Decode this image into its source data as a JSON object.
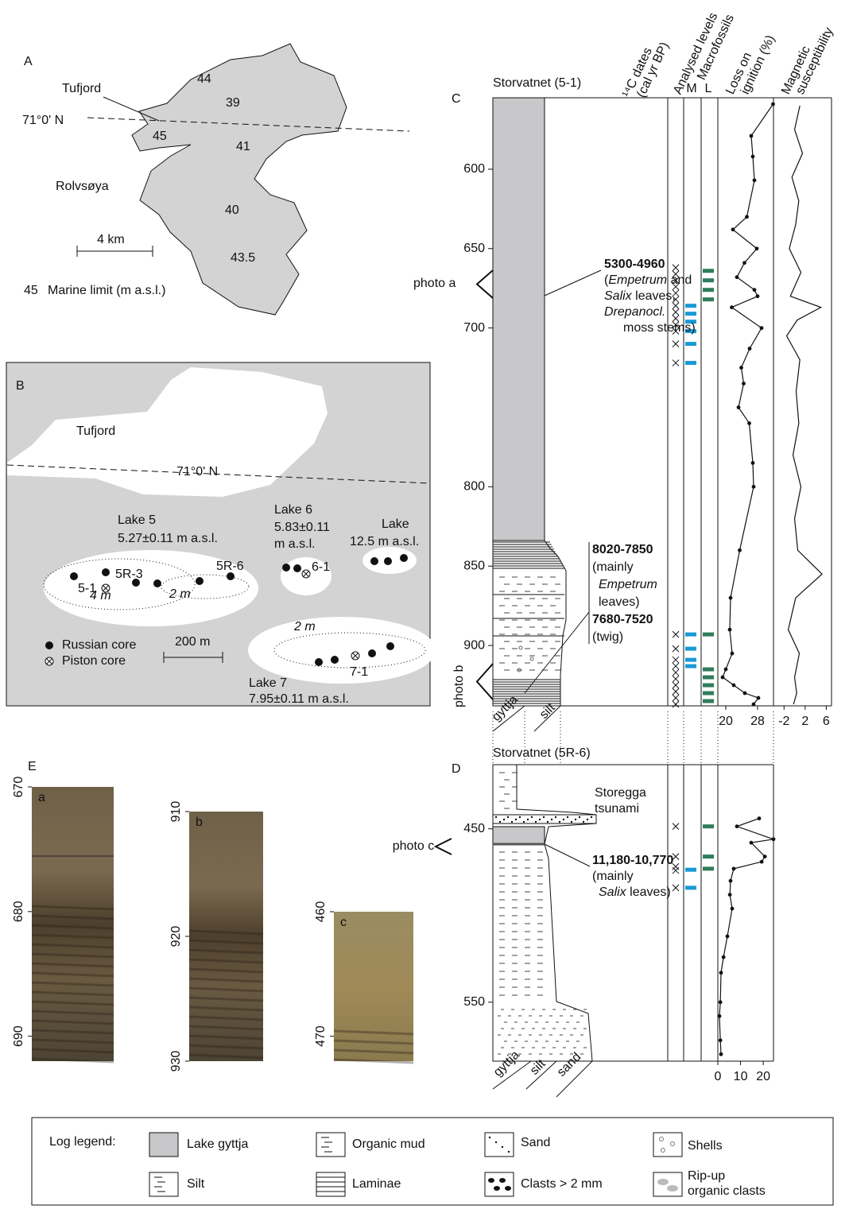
{
  "panel_a": {
    "label": "A",
    "place": "Tufjord",
    "latitude": "71°0' N",
    "island": "Rolvsøya",
    "scale": "4 km",
    "marine_limits": [
      "44",
      "39",
      "45",
      "41",
      "40",
      "43.5"
    ],
    "legend": [
      "45",
      "Marine limit (m a.s.l.)"
    ]
  },
  "panel_b": {
    "label": "B",
    "place": "Tufjord",
    "latitude": "71°0' N",
    "lakes": [
      [
        "Lake 5",
        "5.27±0.11 m a.s.l."
      ],
      [
        "Lake 6",
        "5.83±0.11",
        "m a.s.l."
      ],
      [
        "Lake",
        "12.5 m a.s.l."
      ],
      [
        "Lake 7",
        "7.95±0.11 m a.s.l."
      ]
    ],
    "cores": [
      "5R-3",
      "5-1",
      "5R-6",
      "6-1",
      "7-1"
    ],
    "water_depths": [
      "4 m",
      "2 m",
      "2 m"
    ],
    "legend": [
      "Russian core",
      "Piston core"
    ],
    "scale": "200 m"
  },
  "panel_c": {
    "label": "C",
    "title": "Storvatnet (5-1)",
    "headers": {
      "dates": [
        "¹⁴C dates",
        "(cal yr BP)"
      ],
      "analysed": "Analysed levels",
      "macrofossils": "Macrofossils",
      "m": "M",
      "l": "L",
      "loi": [
        "Loss on",
        "ignition (%)"
      ],
      "ms": [
        "Magnetic",
        "susceptibility"
      ]
    },
    "ylim": [
      555,
      938
    ],
    "yticks": [
      600,
      650,
      700,
      800,
      850,
      900
    ],
    "photos": [
      "photo a",
      "photo b"
    ],
    "dates": [
      [
        [
          "5300-4960"
        ],
        [
          "(",
          "Empetrum",
          " and"
        ],
        [
          "Salix",
          " leaves,"
        ],
        [
          "Drepanocl."
        ],
        [
          "moss stems)"
        ]
      ],
      [
        [
          "8020-7850"
        ],
        [
          "(mainly"
        ],
        [
          "Empetrum"
        ],
        [
          "leaves)"
        ],
        [
          "7680-7520"
        ],
        [
          "(twig)"
        ]
      ]
    ],
    "lithology": [
      "gyttja",
      "silt"
    ],
    "analysed_levels": [
      662,
      666,
      670,
      674,
      678,
      682,
      686,
      690,
      694,
      698,
      702,
      710,
      722,
      893,
      902,
      909,
      913,
      917,
      921,
      925,
      929,
      933,
      937
    ],
    "m_levels": [
      686,
      691,
      696,
      702,
      710,
      722,
      893,
      902,
      909,
      913
    ],
    "l_levels": [
      664,
      670,
      676,
      682,
      893,
      915,
      920,
      925,
      930,
      935
    ],
    "loi": {
      "xlim": [
        18,
        32
      ],
      "xticks": [
        20,
        28
      ],
      "depth": [
        559,
        579,
        592,
        607,
        630,
        638,
        650,
        659,
        668,
        676,
        680,
        687,
        700,
        713,
        725,
        735,
        750,
        760,
        785,
        800,
        840,
        870,
        890,
        905,
        915,
        920,
        925,
        930,
        933,
        937
      ],
      "values": [
        31.9,
        26.4,
        26.8,
        27.2,
        25.3,
        21.8,
        27.8,
        24.7,
        22.8,
        27.2,
        28.0,
        21.5,
        29.0,
        26.0,
        23.9,
        24.5,
        23.2,
        25.9,
        26.8,
        27.0,
        23.5,
        21.2,
        21.0,
        21.6,
        20.0,
        19.2,
        22.0,
        24.8,
        28.2,
        27.0
      ]
    },
    "ms": {
      "xlim": [
        -4,
        7
      ],
      "xticks": [
        -2,
        2,
        6
      ],
      "depth": [
        560,
        575,
        590,
        605,
        620,
        635,
        650,
        665,
        680,
        687,
        695,
        705,
        720,
        740,
        760,
        780,
        800,
        820,
        840,
        855,
        870,
        890,
        905,
        920,
        930,
        937
      ],
      "values": [
        1.0,
        0.0,
        1.5,
        -0.5,
        0.8,
        0.2,
        -1.0,
        1.2,
        -0.8,
        5.0,
        0.5,
        -1.5,
        1.0,
        0.3,
        0.8,
        -0.3,
        1.2,
        0.0,
        0.6,
        5.2,
        0.2,
        -1.2,
        0.9,
        0.0,
        0.4,
        -0.2
      ]
    }
  },
  "panel_d": {
    "label": "D",
    "title": "Storvatnet (5R-6)",
    "tsunami": [
      "Storegga",
      "tsunami"
    ],
    "photo": "photo c",
    "date": [
      [
        "11,180-10,770"
      ],
      [
        "(mainly"
      ],
      [
        "Salix",
        " leaves)"
      ]
    ],
    "lithology": [
      "gyttja",
      "silt",
      "sand"
    ],
    "ylim": [
      413,
      584
    ],
    "yticks": [
      450,
      550
    ],
    "analysed_levels": [
      448.6,
      466,
      471.8,
      474,
      484
    ],
    "m_levels": [
      473.6,
      484
    ],
    "l_levels": [
      448.6,
      466,
      473
    ],
    "loi": {
      "xlim": [
        0,
        24.5
      ],
      "xticks": [
        0,
        10,
        20
      ],
      "depth": [
        444,
        448.6,
        456,
        458,
        466,
        469,
        473,
        480,
        488,
        496,
        512,
        524,
        533,
        550,
        558,
        572,
        580
      ],
      "values": [
        18.2,
        8.4,
        24.5,
        14.7,
        20.7,
        19.3,
        7.0,
        5.6,
        5.3,
        6.3,
        4.2,
        2.5,
        1.4,
        1.1,
        0.7,
        1.1,
        1.4
      ]
    }
  },
  "panel_e": {
    "label": "E",
    "photos": [
      {
        "label": "a",
        "ylim": [
          670,
          692
        ],
        "yticks": [
          670,
          680,
          690
        ]
      },
      {
        "label": "b",
        "ylim": [
          910,
          930
        ],
        "yticks": [
          910,
          920,
          930
        ]
      },
      {
        "label": "c",
        "ylim": [
          460,
          472
        ],
        "yticks": [
          460,
          470
        ]
      }
    ]
  },
  "legend": {
    "title": "Log legend:",
    "items": [
      "Lake gyttja",
      "Organic mud",
      "Sand",
      "Shells",
      "Silt",
      "Laminae",
      "Clasts > 2 mm",
      [
        "Rip-up",
        "organic clasts"
      ]
    ]
  }
}
